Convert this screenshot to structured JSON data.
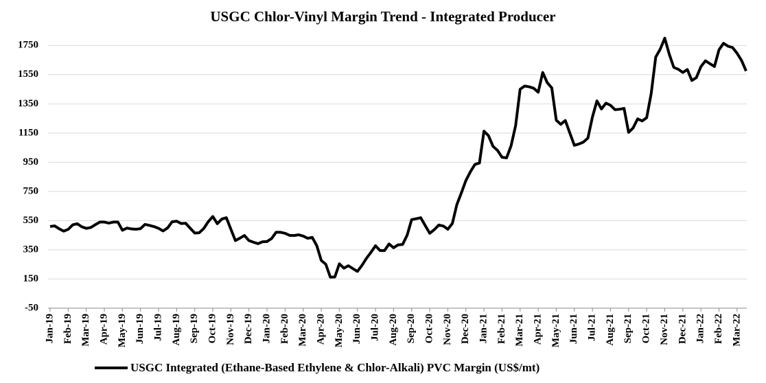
{
  "chart_data": {
    "type": "line",
    "title": "USGC Chlor-Vinyl Margin Trend - Integrated Producer",
    "categories": [
      "Jan-19",
      null,
      null,
      null,
      "Feb-19",
      null,
      null,
      null,
      "Mar-19",
      null,
      null,
      null,
      "Apr-19",
      null,
      null,
      null,
      "May-19",
      null,
      null,
      null,
      "Jun-19",
      null,
      null,
      null,
      "Jul-19",
      null,
      null,
      null,
      "Aug-19",
      null,
      null,
      null,
      "Sep-19",
      null,
      null,
      null,
      "Oct-19",
      null,
      null,
      null,
      "Nov-19",
      null,
      null,
      null,
      "Dec-19",
      null,
      null,
      null,
      "Jan-20",
      null,
      null,
      null,
      "Feb-20",
      null,
      null,
      null,
      "Mar-20",
      null,
      null,
      null,
      "Apr-20",
      null,
      null,
      null,
      "May-20",
      null,
      null,
      null,
      "Jun-20",
      null,
      null,
      null,
      "Jul-20",
      null,
      null,
      null,
      "Aug-20",
      null,
      null,
      null,
      "Sep-20",
      null,
      null,
      null,
      "Oct-20",
      null,
      null,
      null,
      "Nov-20",
      null,
      null,
      null,
      "Dec-20",
      null,
      null,
      null,
      "Jan-21",
      null,
      null,
      null,
      "Feb-21",
      null,
      null,
      null,
      "Mar-21",
      null,
      null,
      null,
      "Apr-21",
      null,
      null,
      null,
      "May-21",
      null,
      null,
      null,
      "Jun-21",
      null,
      null,
      null,
      "Jul-21",
      null,
      null,
      null,
      "Aug-21",
      null,
      null,
      null,
      "Sep-21",
      null,
      null,
      null,
      "Oct-21",
      null,
      null,
      null,
      "Nov-21",
      null,
      null,
      null,
      "Dec-21",
      null,
      null,
      null,
      "Jan-22",
      null,
      null,
      null,
      "Feb-22",
      null,
      null,
      null,
      "Mar-22",
      null,
      null
    ],
    "series": [
      {
        "name": "USGC Integrated (Ethane-Based Ethylene & Chlor-Alkali) PVC Margin (US$/mt)",
        "color": "#000000",
        "values": [
          510,
          514,
          494,
          478,
          490,
          521,
          529,
          508,
          497,
          503,
          522,
          540,
          540,
          533,
          540,
          540,
          484,
          499,
          493,
          491,
          495,
          524,
          517,
          509,
          497,
          479,
          500,
          542,
          546,
          530,
          532,
          498,
          465,
          467,
          496,
          543,
          578,
          529,
          561,
          570,
          491,
          413,
          430,
          448,
          413,
          402,
          392,
          405,
          407,
          427,
          470,
          470,
          463,
          449,
          448,
          453,
          444,
          429,
          435,
          379,
          277,
          251,
          163,
          164,
          254,
          224,
          241,
          221,
          202,
          243,
          292,
          333,
          378,
          345,
          345,
          390,
          364,
          384,
          387,
          450,
          557,
          563,
          570,
          516,
          463,
          488,
          520,
          513,
          491,
          530,
          660,
          740,
          825,
          885,
          935,
          945,
          1163,
          1132,
          1059,
          1031,
          984,
          980,
          1063,
          1200,
          1450,
          1472,
          1467,
          1457,
          1430,
          1565,
          1495,
          1460,
          1238,
          1210,
          1236,
          1150,
          1066,
          1075,
          1088,
          1116,
          1260,
          1370,
          1315,
          1355,
          1340,
          1310,
          1313,
          1319,
          1155,
          1185,
          1247,
          1233,
          1255,
          1420,
          1670,
          1725,
          1800,
          1690,
          1600,
          1587,
          1565,
          1585,
          1510,
          1530,
          1605,
          1645,
          1625,
          1606,
          1720,
          1765,
          1745,
          1736,
          1697,
          1647,
          1575
        ]
      }
    ],
    "ylim": [
      -50,
      1850
    ],
    "yticks": [
      -50,
      150,
      350,
      550,
      750,
      950,
      1150,
      1350,
      1550,
      1750
    ],
    "grid": true
  }
}
